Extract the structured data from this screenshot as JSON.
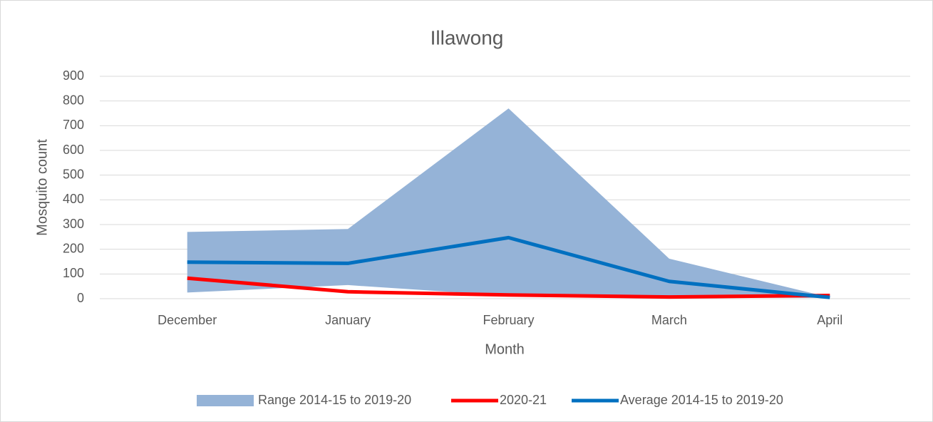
{
  "chart_data": {
    "type": "line",
    "title": "Illawong",
    "xlabel": "Month",
    "ylabel": "Mosquito count",
    "categories": [
      "December",
      "January",
      "February",
      "March",
      "April"
    ],
    "series": [
      {
        "name": "Range 2014-15 to 2019-20",
        "type": "range",
        "color": "#95b3d7",
        "low": [
          25,
          55,
          12,
          5,
          3
        ],
        "high": [
          270,
          282,
          770,
          162,
          5
        ]
      },
      {
        "name": "2020-21",
        "color": "#ff0000",
        "values": [
          83,
          28,
          15,
          7,
          13
        ]
      },
      {
        "name": "Average 2014-15 to 2019-20",
        "color": "#0070c0",
        "values": [
          148,
          143,
          247,
          70,
          5
        ]
      }
    ],
    "ylim": [
      0,
      900
    ],
    "yticks": [
      0,
      100,
      200,
      300,
      400,
      500,
      600,
      700,
      800,
      900
    ],
    "grid": true,
    "legend": "bottom"
  }
}
